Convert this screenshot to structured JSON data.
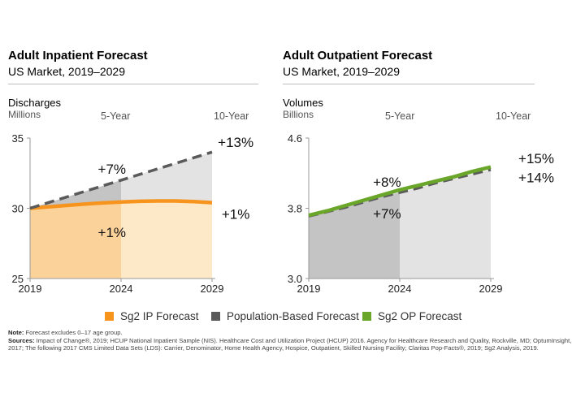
{
  "colors": {
    "sg2_ip": "#f7941d",
    "population": "#5a5a5a",
    "sg2_op": "#6aa629",
    "ip_fill_light": "#fde8c8",
    "ip_fill_dark": "#fbd29a",
    "gray_fill_light": "#e3e3e3",
    "gray_fill_dark": "#c4c4c4",
    "axis": "#999999"
  },
  "left": {
    "title": "Adult Inpatient Forecast",
    "subtitle": "US Market, 2019–2029",
    "ylabel": "Discharges",
    "yunit": "Millions",
    "horizon5": "5-Year",
    "horizon10": "10-Year"
  },
  "right": {
    "title": "Adult Outpatient Forecast",
    "subtitle": "US Market, 2019–2029",
    "ylabel": "Volumes",
    "yunit": "Billions",
    "horizon5": "5-Year",
    "horizon10": "10-Year"
  },
  "chart_data": [
    {
      "type": "area",
      "title": "Adult Inpatient Forecast",
      "subtitle": "US Market, 2019–2029",
      "ylabel": "Discharges (Millions)",
      "ylim": [
        25,
        35
      ],
      "yticks": [
        "25",
        "30",
        "35"
      ],
      "xticks": [
        "2019",
        "2024",
        "2029"
      ],
      "x": [
        2019,
        2020,
        2021,
        2022,
        2023,
        2024,
        2025,
        2026,
        2027,
        2028,
        2029
      ],
      "series": [
        {
          "name": "Sg2 IP Forecast",
          "style": "solid",
          "values": [
            30.0,
            30.1,
            30.2,
            30.3,
            30.38,
            30.45,
            30.5,
            30.52,
            30.52,
            30.48,
            30.4
          ]
        },
        {
          "name": "Population-Based Forecast",
          "style": "dashed",
          "values": [
            30.0,
            30.4,
            30.8,
            31.2,
            31.6,
            32.0,
            32.4,
            32.8,
            33.2,
            33.6,
            34.0
          ]
        }
      ],
      "annotations": [
        {
          "text": "+7%",
          "x": 2023.5,
          "y": 32.8
        },
        {
          "text": "+13%",
          "x": 2030.3,
          "y": 34.7
        },
        {
          "text": "+1%",
          "x": 2023.5,
          "y": 28.3
        },
        {
          "text": "+1%",
          "x": 2030.3,
          "y": 29.6
        }
      ]
    },
    {
      "type": "area",
      "title": "Adult Outpatient Forecast",
      "subtitle": "US Market, 2019–2029",
      "ylabel": "Volumes (Billions)",
      "ylim": [
        3.0,
        4.6
      ],
      "yticks": [
        "3.0",
        "3.8",
        "4.6"
      ],
      "xticks": [
        "2019",
        "2024",
        "2029"
      ],
      "x": [
        2019,
        2020,
        2021,
        2022,
        2023,
        2024,
        2025,
        2026,
        2027,
        2028,
        2029
      ],
      "series": [
        {
          "name": "Sg2 OP Forecast",
          "style": "solid",
          "values": [
            3.72,
            3.77,
            3.83,
            3.89,
            3.95,
            4.01,
            4.06,
            4.11,
            4.16,
            4.22,
            4.27
          ]
        },
        {
          "name": "Population-Based Forecast",
          "style": "dashed",
          "values": [
            3.71,
            3.76,
            3.81,
            3.87,
            3.93,
            3.98,
            4.03,
            4.09,
            4.14,
            4.19,
            4.24
          ]
        }
      ],
      "annotations": [
        {
          "text": "+8%",
          "x": 2023.3,
          "y": 4.1
        },
        {
          "text": "+15%",
          "x": 2031.5,
          "y": 4.37
        },
        {
          "text": "+7%",
          "x": 2023.3,
          "y": 3.74
        },
        {
          "text": "+14%",
          "x": 2031.5,
          "y": 4.15
        }
      ]
    }
  ],
  "legend": [
    {
      "label": "Sg2 IP Forecast",
      "color": "#f7941d"
    },
    {
      "label": "Population-Based Forecast",
      "color": "#5a5a5a"
    },
    {
      "label": "Sg2 OP Forecast",
      "color": "#6aa629"
    }
  ],
  "notes": {
    "note_label": "Note:",
    "note_text": "Forecast excludes 0–17 age group.",
    "sources_label": "Sources:",
    "sources_text": "Impact of Change®, 2019; HCUP National Inpatient Sample (NIS). Healthcare Cost and Utilization Project (HCUP) 2016. Agency for Healthcare Research and Quality, Rockville, MD; OptumInsight, 2017; The following 2017 CMS Limited Data Sets (LDS): Carrier, Denominator, Home Health Agency, Hospice, Outpatient, Skilled Nursing Facility; Claritas Pop-Facts®, 2019; Sg2 Analysis, 2019."
  }
}
